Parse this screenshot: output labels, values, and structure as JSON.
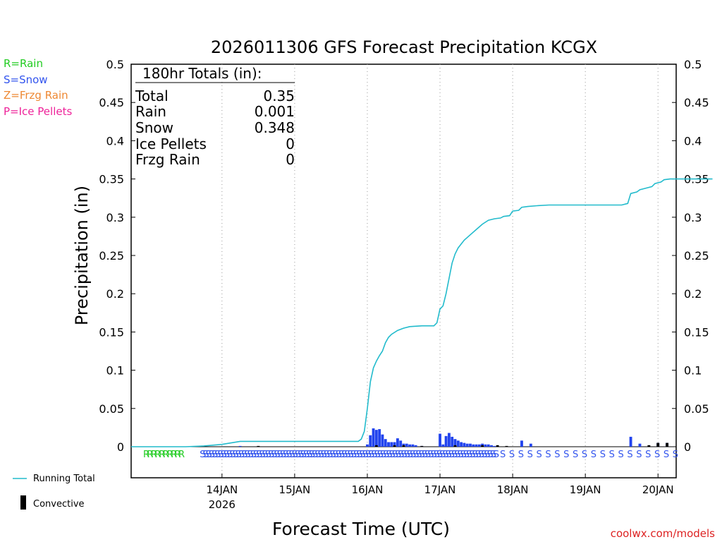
{
  "chart_data": {
    "type": "bar",
    "title": "2026011306 GFS Forecast Precipitation KCGX",
    "xlabel": "Forecast Time (UTC)",
    "ylabel": "Precipitation (in)",
    "ylim": [
      0,
      0.5
    ],
    "yticks": [
      "0.5",
      "0.45",
      "0.4",
      "0.35",
      "0.3",
      "0.25",
      "0.2",
      "0.15",
      "0.1",
      "0.05",
      "0"
    ],
    "ytick_values": [
      0.5,
      0.45,
      0.4,
      0.35,
      0.3,
      0.25,
      0.2,
      0.15,
      0.1,
      0.05,
      0
    ],
    "xlim_hours": [
      -12,
      168
    ],
    "xticks": [
      {
        "label": "14JAN",
        "hour": 18
      },
      {
        "label": "15JAN",
        "hour": 42
      },
      {
        "label": "16JAN",
        "hour": 66
      },
      {
        "label": "17JAN",
        "hour": 90
      },
      {
        "label": "18JAN",
        "hour": 114
      },
      {
        "label": "19JAN",
        "hour": 138
      },
      {
        "label": "20JAN",
        "hour": 162
      }
    ],
    "year_label": "2026",
    "grid": "vertical-dotted",
    "type_legend": [
      {
        "label": "R=Rain",
        "color": "#22cc22"
      },
      {
        "label": "S=Snow",
        "color": "#3355ee"
      },
      {
        "label": "Z=Frzg Rain",
        "color": "#ee8833"
      },
      {
        "label": "P=Ice Pellets",
        "color": "#ee2299"
      }
    ],
    "totals": {
      "heading": "180hr Totals (in):",
      "rows": [
        {
          "label": "Total",
          "value": "0.35"
        },
        {
          "label": "Rain",
          "value": "0.001"
        },
        {
          "label": "Snow",
          "value": "0.348"
        },
        {
          "label": "Ice Pellets",
          "value": "0"
        },
        {
          "label": "Frzg Rain",
          "value": "0"
        }
      ]
    },
    "series": [
      {
        "name": "Running Total",
        "type": "line",
        "color": "#22bbcc",
        "points": [
          [
            -12,
            0
          ],
          [
            6,
            0
          ],
          [
            12,
            0.001
          ],
          [
            15,
            0.002
          ],
          [
            18,
            0.003
          ],
          [
            21,
            0.005
          ],
          [
            24,
            0.007
          ],
          [
            60,
            0.007
          ],
          [
            63,
            0.007
          ],
          [
            64,
            0.01
          ],
          [
            65,
            0.02
          ],
          [
            66,
            0.05
          ],
          [
            67,
            0.085
          ],
          [
            68,
            0.103
          ],
          [
            69,
            0.112
          ],
          [
            70,
            0.119
          ],
          [
            71,
            0.125
          ],
          [
            72,
            0.136
          ],
          [
            73,
            0.143
          ],
          [
            74,
            0.147
          ],
          [
            76,
            0.152
          ],
          [
            78,
            0.155
          ],
          [
            80,
            0.157
          ],
          [
            84,
            0.158
          ],
          [
            88,
            0.158
          ],
          [
            89,
            0.162
          ],
          [
            90,
            0.18
          ],
          [
            91,
            0.184
          ],
          [
            92,
            0.2
          ],
          [
            93,
            0.22
          ],
          [
            94,
            0.24
          ],
          [
            95,
            0.252
          ],
          [
            96,
            0.26
          ],
          [
            98,
            0.27
          ],
          [
            100,
            0.277
          ],
          [
            102,
            0.284
          ],
          [
            104,
            0.291
          ],
          [
            106,
            0.296
          ],
          [
            108,
            0.298
          ],
          [
            110,
            0.299
          ],
          [
            111,
            0.301
          ],
          [
            113,
            0.302
          ],
          [
            114,
            0.308
          ],
          [
            116,
            0.309
          ],
          [
            117,
            0.313
          ],
          [
            119,
            0.314
          ],
          [
            122,
            0.315
          ],
          [
            126,
            0.316
          ],
          [
            150,
            0.316
          ],
          [
            152,
            0.318
          ],
          [
            153,
            0.331
          ],
          [
            155,
            0.333
          ],
          [
            156,
            0.336
          ],
          [
            158,
            0.338
          ],
          [
            160,
            0.34
          ],
          [
            161,
            0.344
          ],
          [
            163,
            0.346
          ],
          [
            164,
            0.349
          ],
          [
            166,
            0.35
          ],
          [
            180,
            0.35
          ]
        ]
      },
      {
        "name": "Snow",
        "type": "bar",
        "color": "#2244ee",
        "bar_width_hours": 0.9,
        "points": [
          [
            24,
            0.001
          ],
          [
            66,
            0.003
          ],
          [
            67,
            0.015
          ],
          [
            68,
            0.024
          ],
          [
            69,
            0.022
          ],
          [
            70,
            0.023
          ],
          [
            71,
            0.016
          ],
          [
            72,
            0.01
          ],
          [
            73,
            0.006
          ],
          [
            74,
            0.006
          ],
          [
            75,
            0.006
          ],
          [
            76,
            0.011
          ],
          [
            77,
            0.008
          ],
          [
            78,
            0.004
          ],
          [
            79,
            0.004
          ],
          [
            80,
            0.003
          ],
          [
            81,
            0.003
          ],
          [
            82,
            0.002
          ],
          [
            84,
            0.001
          ],
          [
            90,
            0.017
          ],
          [
            91,
            0.003
          ],
          [
            92,
            0.014
          ],
          [
            93,
            0.018
          ],
          [
            94,
            0.013
          ],
          [
            95,
            0.01
          ],
          [
            96,
            0.008
          ],
          [
            97,
            0.006
          ],
          [
            98,
            0.005
          ],
          [
            99,
            0.004
          ],
          [
            100,
            0.004
          ],
          [
            101,
            0.003
          ],
          [
            102,
            0.003
          ],
          [
            103,
            0.003
          ],
          [
            104,
            0.004
          ],
          [
            105,
            0.003
          ],
          [
            106,
            0.003
          ],
          [
            107,
            0.002
          ],
          [
            108,
            0.001
          ],
          [
            117,
            0.008
          ],
          [
            120,
            0.004
          ],
          [
            153,
            0.013
          ],
          [
            156,
            0.004
          ],
          [
            162,
            0.005
          ],
          [
            165,
            0.005
          ]
        ]
      },
      {
        "name": "Convective",
        "type": "bar",
        "color": "#000000",
        "bar_width_hours": 0.9,
        "points": [
          [
            30,
            0.001
          ],
          [
            69,
            0.002
          ],
          [
            75,
            0.002
          ],
          [
            78,
            0.002
          ],
          [
            84,
            0.001
          ],
          [
            95,
            0.002
          ],
          [
            104,
            0.002
          ],
          [
            109,
            0.002
          ],
          [
            112,
            0.001
          ],
          [
            159,
            0.002
          ],
          [
            162,
            0.005
          ],
          [
            165,
            0.005
          ]
        ]
      }
    ],
    "precip_type_strip": {
      "rain": {
        "text": "RRRR RR RRRR",
        "color": "#22cc22"
      },
      "snow_dense": {
        "text": "SSSSSSSSSSSSSSSSSSSSSSSSSSSSSSSSSS SSS SSSSSSSSSSSSSSSSSSSSSSSSSSSSSSSSSSSSSSSSSSSSSSSSSSSSSSSSSSSSSSS",
        "color": "#3355ee"
      },
      "snow_sparse": {
        "text": "S S S S S S S S S S S S S S S S S S S S",
        "color": "#3355ee"
      }
    },
    "legend": [
      {
        "label": "Running Total",
        "kind": "line",
        "color": "#22bbcc"
      },
      {
        "label": "Convective",
        "kind": "bar",
        "color": "#000000"
      }
    ],
    "credit": "coolwx.com/models"
  }
}
